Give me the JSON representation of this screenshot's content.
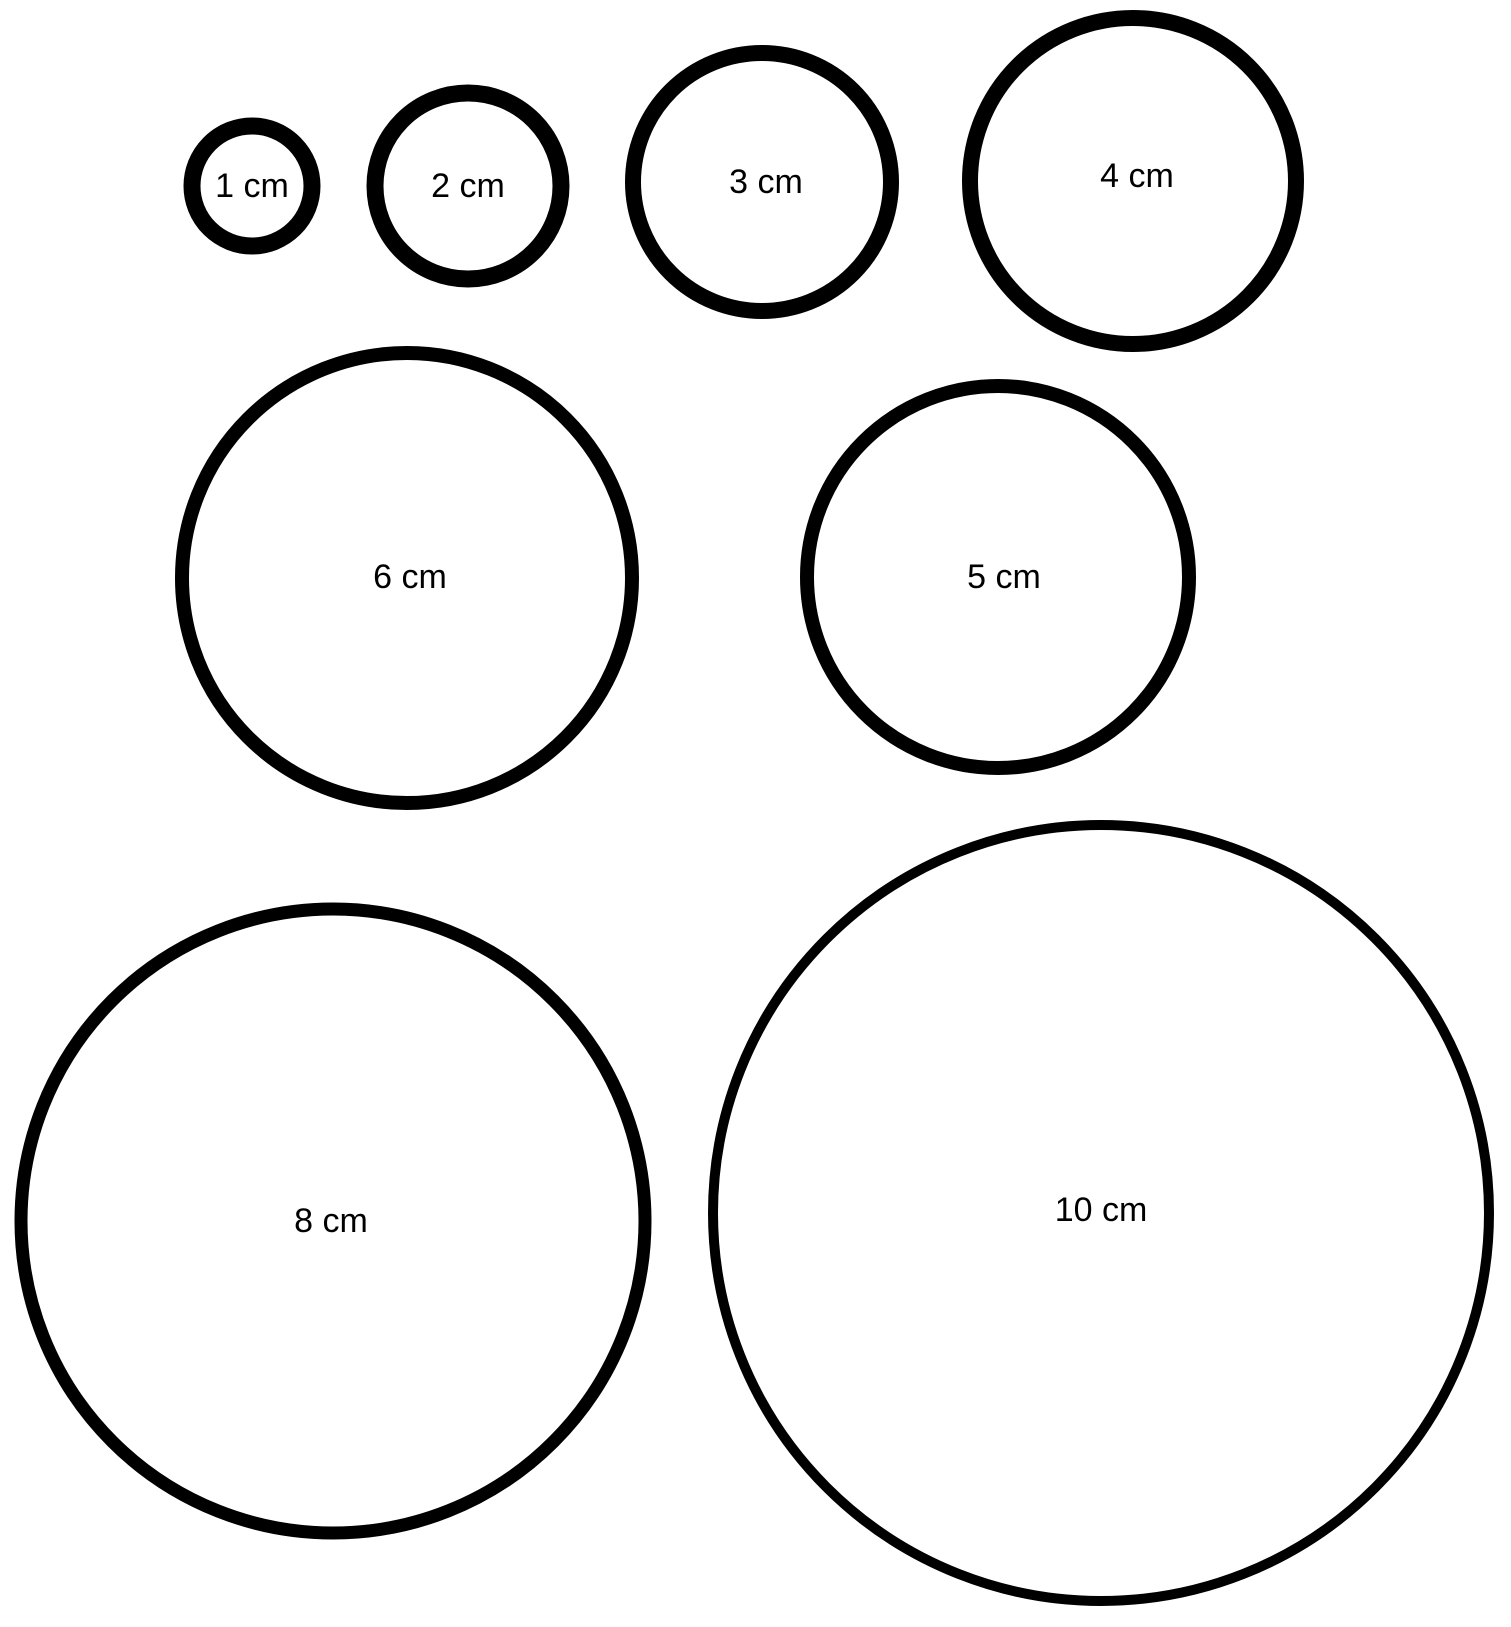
{
  "colors": {
    "background": "#ffffff",
    "stroke": "#000000",
    "text": "#000000"
  },
  "circles": [
    {
      "label": "1 cm"
    },
    {
      "label": "2 cm"
    },
    {
      "label": "3 cm"
    },
    {
      "label": "4 cm"
    },
    {
      "label": "6 cm"
    },
    {
      "label": "5 cm"
    },
    {
      "label": "8 cm"
    },
    {
      "label": "10 cm"
    }
  ]
}
